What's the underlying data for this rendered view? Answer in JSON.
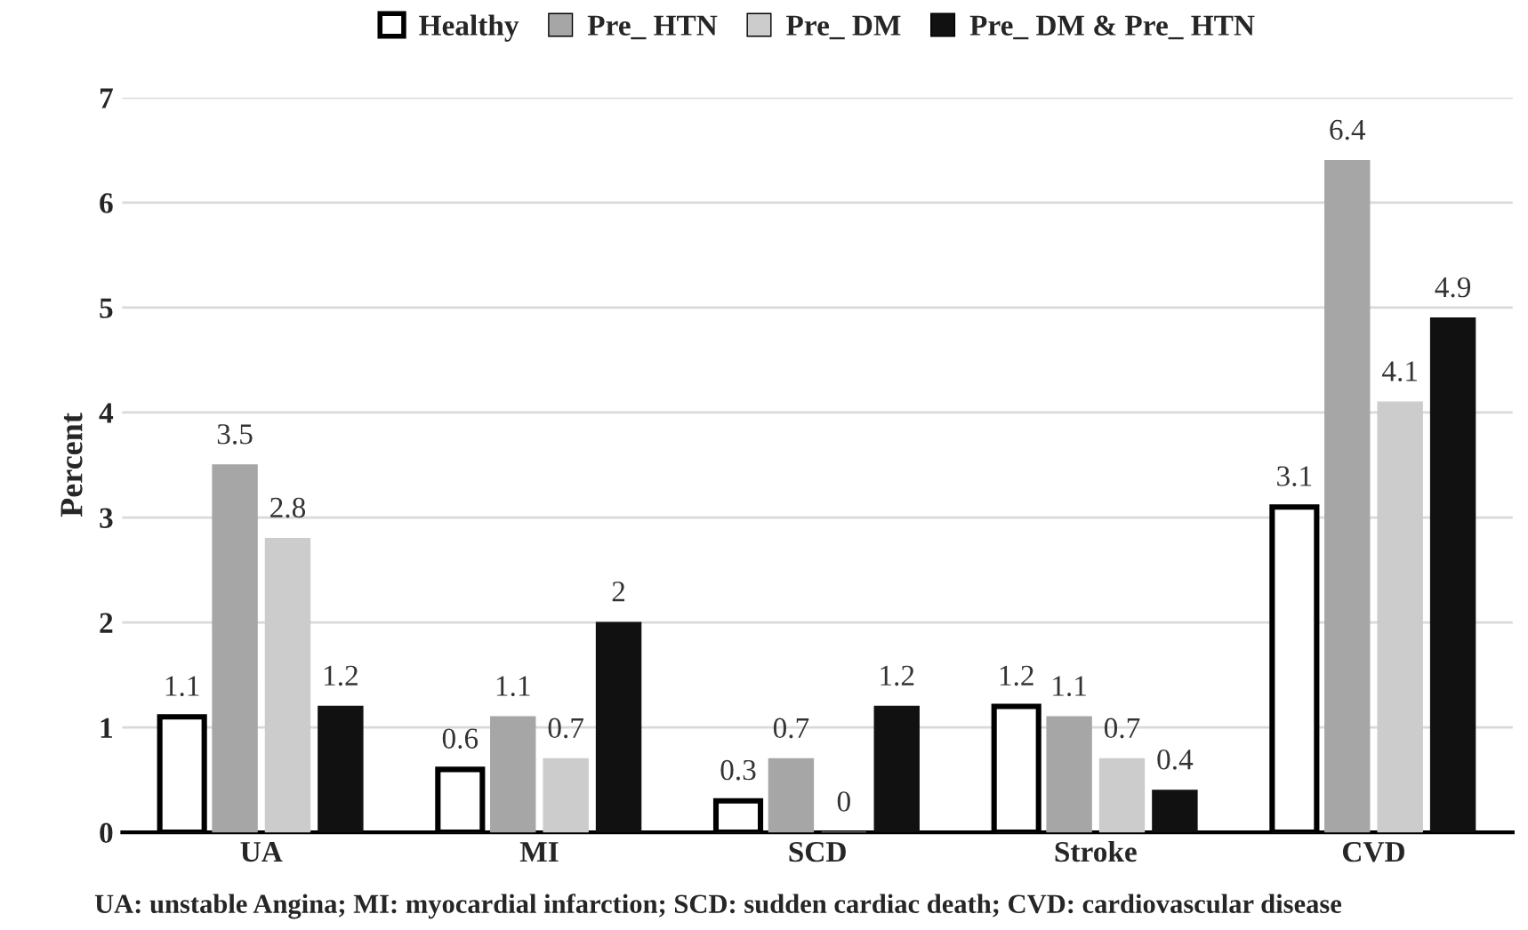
{
  "chart_data": {
    "type": "bar",
    "categories": [
      "UA",
      "MI",
      "SCD",
      "Stroke",
      "CVD"
    ],
    "series": [
      {
        "name": "Healthy",
        "color": "#ffffff",
        "values": [
          1.1,
          0.6,
          0.3,
          1.2,
          3.1
        ]
      },
      {
        "name": "Pre_ HTN",
        "color": "#a6a6a6",
        "values": [
          3.5,
          1.1,
          0.7,
          1.1,
          6.4
        ]
      },
      {
        "name": "Pre_ DM",
        "color": "#cccccc",
        "values": [
          2.8,
          0.7,
          0,
          0.7,
          4.1
        ]
      },
      {
        "name": "Pre_ DM & Pre_ HTN",
        "color": "#111111",
        "values": [
          1.2,
          2,
          1.2,
          0.4,
          4.9
        ]
      }
    ],
    "ylabel": "Percent",
    "ylim": [
      0,
      7
    ],
    "yticks": [
      0,
      1,
      2,
      3,
      4,
      5,
      6,
      7
    ],
    "grid": "y",
    "legend": "top",
    "data_labels": true,
    "annotations": [
      "UA: unstable Angina; MI: myocardial infarction; SCD: sudden cardiac death; CVD: cardiovascular disease"
    ]
  }
}
